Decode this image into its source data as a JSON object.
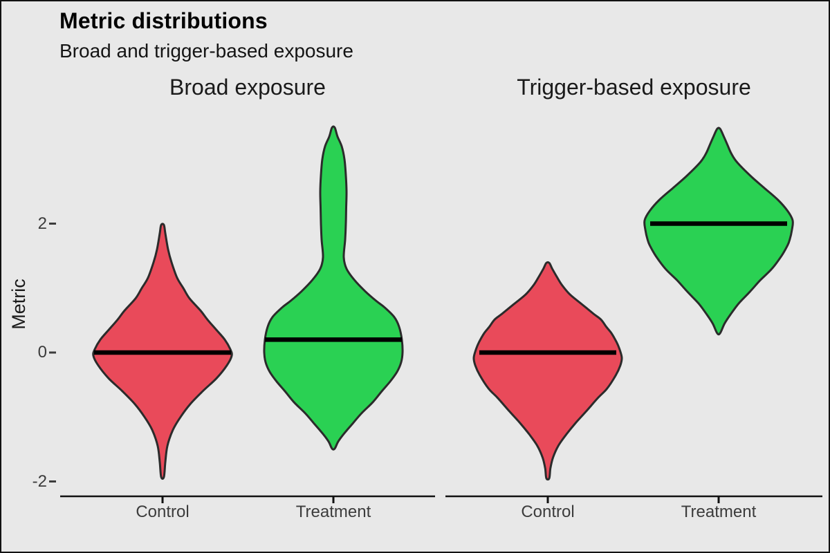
{
  "chart_data": {
    "type": "violin",
    "title": "Metric distributions",
    "subtitle": "Broad and trigger-based exposure",
    "ylabel": "Metric",
    "ylim": [
      -2.3,
      3.55
    ],
    "grid": false,
    "legend": "none",
    "y_axis": {
      "ticks": [
        {
          "value": 2,
          "label": "2"
        },
        {
          "value": 0,
          "label": "0"
        },
        {
          "value": -2,
          "label": "-2"
        }
      ]
    },
    "categories": [
      "Control",
      "Treatment"
    ],
    "facets": [
      {
        "label": "Broad exposure",
        "groups": [
          {
            "label": "Control",
            "color_key": "control",
            "median": 0.0,
            "range": [
              -1.93,
              1.98
            ],
            "profile": [
              [
                1.98,
                0.02
              ],
              [
                1.85,
                0.04
              ],
              [
                1.6,
                0.08
              ],
              [
                1.4,
                0.13
              ],
              [
                1.16,
                0.21
              ],
              [
                1.0,
                0.3
              ],
              [
                0.84,
                0.39
              ],
              [
                0.65,
                0.55
              ],
              [
                0.51,
                0.65
              ],
              [
                0.35,
                0.78
              ],
              [
                0.2,
                0.9
              ],
              [
                0.05,
                0.98
              ],
              [
                -0.05,
                1.0
              ],
              [
                -0.2,
                0.93
              ],
              [
                -0.4,
                0.78
              ],
              [
                -0.6,
                0.58
              ],
              [
                -0.8,
                0.4
              ],
              [
                -1.0,
                0.26
              ],
              [
                -1.2,
                0.15
              ],
              [
                -1.45,
                0.07
              ],
              [
                -1.7,
                0.04
              ],
              [
                -1.93,
                0.02
              ]
            ]
          },
          {
            "label": "Treatment",
            "color_key": "treatment",
            "median": 0.2,
            "range": [
              -1.49,
              3.49
            ],
            "profile": [
              [
                3.49,
                0.02
              ],
              [
                3.35,
                0.06
              ],
              [
                3.2,
                0.12
              ],
              [
                3.0,
                0.16
              ],
              [
                2.75,
                0.18
              ],
              [
                2.5,
                0.19
              ],
              [
                2.25,
                0.185
              ],
              [
                2.0,
                0.18
              ],
              [
                1.75,
                0.17
              ],
              [
                1.48,
                0.15
              ],
              [
                1.3,
                0.19
              ],
              [
                1.13,
                0.3
              ],
              [
                0.95,
                0.46
              ],
              [
                0.8,
                0.62
              ],
              [
                0.7,
                0.74
              ],
              [
                0.55,
                0.88
              ],
              [
                0.4,
                0.95
              ],
              [
                0.2,
                0.99
              ],
              [
                0.0,
                1.0
              ],
              [
                -0.15,
                0.98
              ],
              [
                -0.3,
                0.92
              ],
              [
                -0.45,
                0.82
              ],
              [
                -0.6,
                0.7
              ],
              [
                -0.77,
                0.57
              ],
              [
                -0.95,
                0.4
              ],
              [
                -1.1,
                0.28
              ],
              [
                -1.25,
                0.16
              ],
              [
                -1.38,
                0.07
              ],
              [
                -1.49,
                0.02
              ]
            ]
          }
        ]
      },
      {
        "label": "Trigger-based exposure",
        "groups": [
          {
            "label": "Control",
            "color_key": "control",
            "median": 0.0,
            "range": [
              -1.95,
              1.39
            ],
            "profile": [
              [
                1.39,
                0.02
              ],
              [
                1.3,
                0.06
              ],
              [
                1.18,
                0.12
              ],
              [
                1.05,
                0.19
              ],
              [
                0.9,
                0.3
              ],
              [
                0.75,
                0.46
              ],
              [
                0.6,
                0.62
              ],
              [
                0.51,
                0.72
              ],
              [
                0.4,
                0.79
              ],
              [
                0.3,
                0.86
              ],
              [
                0.16,
                0.93
              ],
              [
                0.05,
                0.97
              ],
              [
                -0.08,
                1.0
              ],
              [
                -0.2,
                0.98
              ],
              [
                -0.35,
                0.92
              ],
              [
                -0.56,
                0.8
              ],
              [
                -0.7,
                0.68
              ],
              [
                -0.91,
                0.52
              ],
              [
                -1.1,
                0.37
              ],
              [
                -1.27,
                0.25
              ],
              [
                -1.45,
                0.14
              ],
              [
                -1.63,
                0.07
              ],
              [
                -1.8,
                0.035
              ],
              [
                -1.95,
                0.02
              ]
            ]
          },
          {
            "label": "Treatment",
            "color_key": "treatment",
            "median": 2.0,
            "range": [
              0.3,
              3.47
            ],
            "profile": [
              [
                3.47,
                0.02
              ],
              [
                3.35,
                0.07
              ],
              [
                3.22,
                0.12
              ],
              [
                3.09,
                0.17
              ],
              [
                2.95,
                0.25
              ],
              [
                2.73,
                0.44
              ],
              [
                2.55,
                0.62
              ],
              [
                2.37,
                0.8
              ],
              [
                2.2,
                0.93
              ],
              [
                2.05,
                1.0
              ],
              [
                1.9,
                0.99
              ],
              [
                1.75,
                0.96
              ],
              [
                1.66,
                0.93
              ],
              [
                1.5,
                0.85
              ],
              [
                1.3,
                0.72
              ],
              [
                1.12,
                0.56
              ],
              [
                0.94,
                0.42
              ],
              [
                0.76,
                0.27
              ],
              [
                0.59,
                0.16
              ],
              [
                0.45,
                0.08
              ],
              [
                0.3,
                0.02
              ]
            ]
          }
        ]
      }
    ],
    "colors": {
      "background": "#e8e8e8",
      "control": "#e94a5a",
      "treatment": "#2ad153",
      "outline": "#2b2b2b",
      "median": "#000000",
      "axis": "#111111",
      "tick_text": "#3c3c3c",
      "border": "#121212"
    }
  }
}
